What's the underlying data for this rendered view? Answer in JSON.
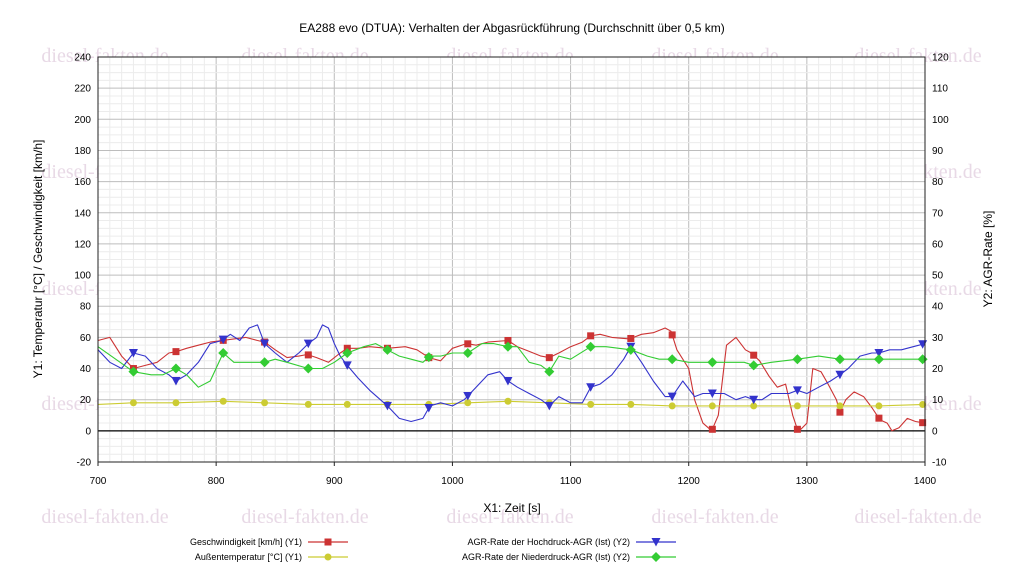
{
  "chart_data": {
    "type": "line",
    "title": "EA288 evo (DTUA): Verhalten der Abgasrückführung (Durchschnitt über 0,5 km)",
    "xlabel": "X1: Zeit [s]",
    "ylabel_left": "Y1: Temperatur [°C] / Geschwindigkeit [km/h]",
    "ylabel_right": "Y2: AGR-Rate [%]",
    "xlim": [
      700,
      1400
    ],
    "ylim_left": [
      -20,
      240
    ],
    "ylim_right": [
      -10,
      120
    ],
    "x_ticks": [
      700,
      800,
      900,
      1000,
      1100,
      1200,
      1300,
      1400
    ],
    "y_left_ticks": [
      -20,
      0,
      20,
      40,
      60,
      80,
      100,
      120,
      140,
      160,
      180,
      200,
      220,
      240
    ],
    "y_right_ticks": [
      -10,
      0,
      10,
      20,
      30,
      40,
      50,
      60,
      70,
      80,
      90,
      100,
      110,
      120
    ],
    "grid": true,
    "legend_position": "bottom",
    "watermark": "diesel-fakten.de",
    "series": [
      {
        "name": "Geschwindigkeit [km/h] (Y1)",
        "axis": "left",
        "color": "#cc3333",
        "marker": "square",
        "x": [
          700,
          710,
          720,
          730,
          740,
          750,
          760,
          767,
          775,
          785,
          795,
          805,
          815,
          825,
          835,
          841,
          850,
          860,
          870,
          877,
          885,
          895,
          905,
          911,
          920,
          930,
          945,
          960,
          970,
          980,
          990,
          1000,
          1012,
          1020,
          1030,
          1047,
          1055,
          1065,
          1075,
          1082,
          1090,
          1100,
          1110,
          1117,
          1125,
          1135,
          1150,
          1160,
          1170,
          1180,
          1185,
          1190,
          1200,
          1205,
          1212,
          1218,
          1220,
          1225,
          1232,
          1240,
          1248,
          1253,
          1260,
          1268,
          1275,
          1282,
          1288,
          1292,
          1295,
          1300,
          1305,
          1312,
          1318,
          1325,
          1328,
          1333,
          1340,
          1348,
          1355,
          1362,
          1368,
          1372,
          1378,
          1385,
          1392,
          1400
        ],
        "y": [
          58,
          60,
          48,
          40,
          42,
          44,
          50,
          51,
          53,
          55,
          57,
          58,
          59,
          60,
          58,
          57,
          52,
          47,
          48,
          49,
          47,
          44,
          50,
          53,
          53,
          54,
          53,
          54,
          52,
          47,
          45,
          53,
          56,
          55,
          57,
          58,
          54,
          51,
          48,
          47,
          50,
          54,
          57,
          61,
          62,
          60,
          59,
          62,
          63,
          66,
          64,
          52,
          40,
          20,
          5,
          1,
          1,
          10,
          55,
          60,
          52,
          50,
          45,
          35,
          28,
          30,
          10,
          1,
          1,
          5,
          40,
          38,
          30,
          20,
          12,
          20,
          25,
          22,
          15,
          7,
          5,
          0,
          2,
          8,
          6,
          5
        ]
      },
      {
        "name": "Außentemperatur [°C] (Y1)",
        "axis": "left",
        "color": "#cccc33",
        "marker": "circle",
        "x": [
          700,
          730,
          766,
          806,
          841,
          878,
          911,
          945,
          980,
          1013,
          1047,
          1082,
          1117,
          1151,
          1186,
          1220,
          1255,
          1292,
          1328,
          1361,
          1400
        ],
        "y": [
          17,
          18,
          18,
          19,
          18,
          17,
          17,
          17,
          17,
          18,
          19,
          18,
          17,
          17,
          16,
          16,
          16,
          16,
          16,
          16,
          17
        ]
      },
      {
        "name": "AGR-Rate der Hochdruck-AGR (Ist) (Y2)",
        "axis": "right",
        "color": "#3333cc",
        "marker": "triangle-down",
        "x": [
          700,
          710,
          720,
          730,
          740,
          750,
          760,
          766,
          775,
          785,
          795,
          805,
          812,
          820,
          828,
          835,
          841,
          850,
          860,
          870,
          878,
          885,
          890,
          895,
          900,
          905,
          911,
          920,
          930,
          945,
          955,
          965,
          975,
          981,
          990,
          1000,
          1010,
          1020,
          1030,
          1040,
          1047,
          1055,
          1065,
          1075,
          1082,
          1090,
          1100,
          1110,
          1117,
          1125,
          1135,
          1145,
          1151,
          1160,
          1170,
          1180,
          1186,
          1195,
          1205,
          1212,
          1220,
          1230,
          1240,
          1248,
          1255,
          1262,
          1270,
          1278,
          1285,
          1292,
          1300,
          1310,
          1320,
          1328,
          1335,
          1345,
          1355,
          1361,
          1370,
          1380,
          1390,
          1400
        ],
        "y": [
          26,
          22,
          20,
          25,
          24,
          20,
          18,
          16,
          18,
          22,
          28,
          29,
          31,
          29,
          33,
          34,
          28,
          25,
          22,
          25,
          28,
          30,
          34,
          33,
          28,
          24,
          21,
          17,
          13,
          8,
          4,
          3,
          4,
          8,
          9,
          8,
          10,
          14,
          18,
          19,
          16,
          14,
          12,
          10,
          8,
          11,
          9,
          9,
          14,
          15,
          18,
          23,
          27,
          22,
          16,
          11,
          11,
          16,
          11,
          12,
          12,
          12,
          10,
          11,
          10,
          10,
          12,
          12,
          12,
          13,
          12,
          14,
          16,
          18,
          20,
          24,
          25,
          25,
          26,
          26,
          27,
          28
        ]
      },
      {
        "name": "AGR-Rate der Niederdruck-AGR (Ist) (Y2)",
        "axis": "right",
        "color": "#33cc33",
        "marker": "diamond",
        "x": [
          700,
          715,
          730,
          745,
          755,
          766,
          775,
          785,
          795,
          806,
          815,
          825,
          841,
          850,
          860,
          878,
          890,
          900,
          911,
          925,
          935,
          945,
          955,
          965,
          975,
          981,
          990,
          1000,
          1013,
          1025,
          1035,
          1047,
          1055,
          1065,
          1075,
          1082,
          1090,
          1100,
          1117,
          1130,
          1151,
          1165,
          1175,
          1186,
          1200,
          1220,
          1235,
          1247,
          1255,
          1270,
          1292,
          1310,
          1328,
          1345,
          1361,
          1380,
          1400
        ],
        "y": [
          27,
          23,
          19,
          18,
          18,
          20,
          18,
          14,
          16,
          25,
          22,
          22,
          22,
          23,
          22,
          20,
          20,
          22,
          25,
          27,
          28,
          26,
          24,
          23,
          22,
          24,
          24,
          25,
          25,
          28,
          28,
          27,
          27,
          22,
          21,
          19,
          24,
          23,
          27,
          27,
          26,
          24,
          23,
          23,
          22,
          22,
          22,
          22,
          21,
          22,
          23,
          24,
          23,
          23,
          23,
          23,
          23
        ]
      }
    ]
  }
}
